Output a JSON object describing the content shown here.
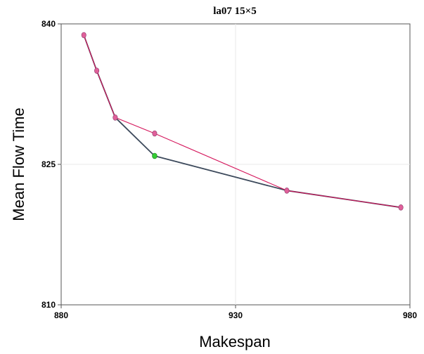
{
  "chart_data": {
    "type": "line",
    "title": "la07 15×5",
    "xlabel": "Makespan",
    "ylabel": "Mean Flow Time",
    "xlim": [
      880,
      980
    ],
    "ylim": [
      810,
      840
    ],
    "xticks": [
      "880",
      "930",
      "980"
    ],
    "yticks": [
      "810",
      "825",
      "840"
    ],
    "grid": true,
    "series": [
      {
        "color": "#3d4a5c",
        "markers": false,
        "points": [
          [
            886.5,
            838.8
          ],
          [
            890.2,
            835.0
          ],
          [
            895.5,
            830.0
          ],
          [
            906.8,
            825.9
          ],
          [
            944.7,
            822.2
          ],
          [
            977.4,
            820.4
          ]
        ]
      },
      {
        "color": "#d4145a",
        "markers": true,
        "points": [
          [
            886.5,
            838.8
          ],
          [
            890.2,
            835.0
          ],
          [
            895.5,
            830.0
          ],
          [
            906.8,
            828.3
          ],
          [
            944.7,
            822.2
          ],
          [
            977.4,
            820.4
          ]
        ]
      }
    ],
    "highlight_point": {
      "x": 906.8,
      "y": 825.9,
      "color": "#33cc33"
    },
    "marker_color": "#e0609a"
  }
}
